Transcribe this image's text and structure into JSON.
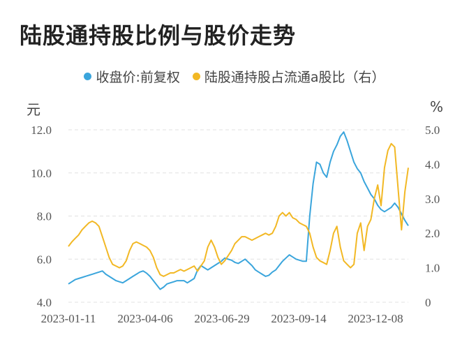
{
  "title": "陆股通持股比例与股价走势",
  "legend": {
    "price_label": "收盘价:前复权",
    "ratio_label": "陆股通持股占流通a股比（右）"
  },
  "units": {
    "left": "元",
    "right": "%"
  },
  "colors": {
    "price": "#3aa5dc",
    "ratio": "#f2b824",
    "grid": "#e0e0e0"
  },
  "chart_data": {
    "type": "line",
    "x_tick_labels": [
      "2023-01-11",
      "2023-04-06",
      "2023-06-29",
      "2023-09-14",
      "2023-12-08"
    ],
    "y_left": {
      "ylim": [
        4.0,
        12.0
      ],
      "ticks": [
        "12.0",
        "10.0",
        "8.0",
        "6.0",
        "4.0"
      ]
    },
    "y_right": {
      "ylim": [
        0,
        5.0
      ],
      "ticks": [
        "5.0",
        "4.0",
        "3.0",
        "2.0",
        "1.0",
        "0"
      ]
    },
    "grid": "horizontal dashed",
    "legend_position": "top-center",
    "series": [
      {
        "name": "收盘价:前复权",
        "axis": "left",
        "values": [
          4.85,
          4.95,
          5.05,
          5.1,
          5.15,
          5.2,
          5.25,
          5.3,
          5.35,
          5.4,
          5.45,
          5.3,
          5.2,
          5.1,
          5.0,
          4.95,
          4.9,
          5.0,
          5.1,
          5.2,
          5.3,
          5.4,
          5.45,
          5.35,
          5.2,
          5.0,
          4.8,
          4.6,
          4.7,
          4.85,
          4.9,
          4.95,
          5.0,
          5.0,
          5.0,
          4.9,
          5.0,
          5.1,
          5.5,
          5.7,
          5.6,
          5.5,
          5.6,
          5.7,
          5.8,
          5.9,
          6.05,
          6.0,
          5.95,
          5.85,
          5.8,
          5.9,
          6.0,
          5.85,
          5.7,
          5.5,
          5.4,
          5.3,
          5.2,
          5.25,
          5.4,
          5.5,
          5.7,
          5.9,
          6.05,
          6.2,
          6.1,
          6.0,
          5.95,
          5.9,
          5.9,
          8.0,
          9.5,
          10.5,
          10.4,
          10.0,
          9.8,
          10.5,
          11.0,
          11.3,
          11.7,
          11.9,
          11.5,
          11.0,
          10.5,
          10.2,
          10.0,
          9.6,
          9.3,
          9.0,
          8.8,
          8.5,
          8.3,
          8.2,
          8.3,
          8.4,
          8.6,
          8.4,
          8.1,
          7.8,
          7.55
        ]
      },
      {
        "name": "陆股通持股占流通a股比（右）",
        "axis": "right",
        "values": [
          1.62,
          1.75,
          1.85,
          1.95,
          2.1,
          2.2,
          2.3,
          2.35,
          2.3,
          2.2,
          1.9,
          1.6,
          1.3,
          1.1,
          1.05,
          1.0,
          1.05,
          1.2,
          1.5,
          1.7,
          1.75,
          1.7,
          1.65,
          1.6,
          1.5,
          1.3,
          1.0,
          0.8,
          0.75,
          0.8,
          0.85,
          0.85,
          0.9,
          0.95,
          0.9,
          0.95,
          1.0,
          1.05,
          0.9,
          1.05,
          1.2,
          1.6,
          1.8,
          1.6,
          1.3,
          1.1,
          1.2,
          1.35,
          1.5,
          1.7,
          1.8,
          1.9,
          1.9,
          1.85,
          1.8,
          1.85,
          1.9,
          1.95,
          2.0,
          1.95,
          2.0,
          2.2,
          2.5,
          2.6,
          2.5,
          2.6,
          2.45,
          2.4,
          2.3,
          2.25,
          2.2,
          2.0,
          1.6,
          1.3,
          1.2,
          1.15,
          1.1,
          1.5,
          2.0,
          2.2,
          1.6,
          1.2,
          1.1,
          1.0,
          1.1,
          2.0,
          2.3,
          1.5,
          2.2,
          2.4,
          3.0,
          3.4,
          2.8,
          3.9,
          4.4,
          4.6,
          4.5,
          3.3,
          2.1,
          3.2,
          3.9
        ]
      }
    ]
  }
}
